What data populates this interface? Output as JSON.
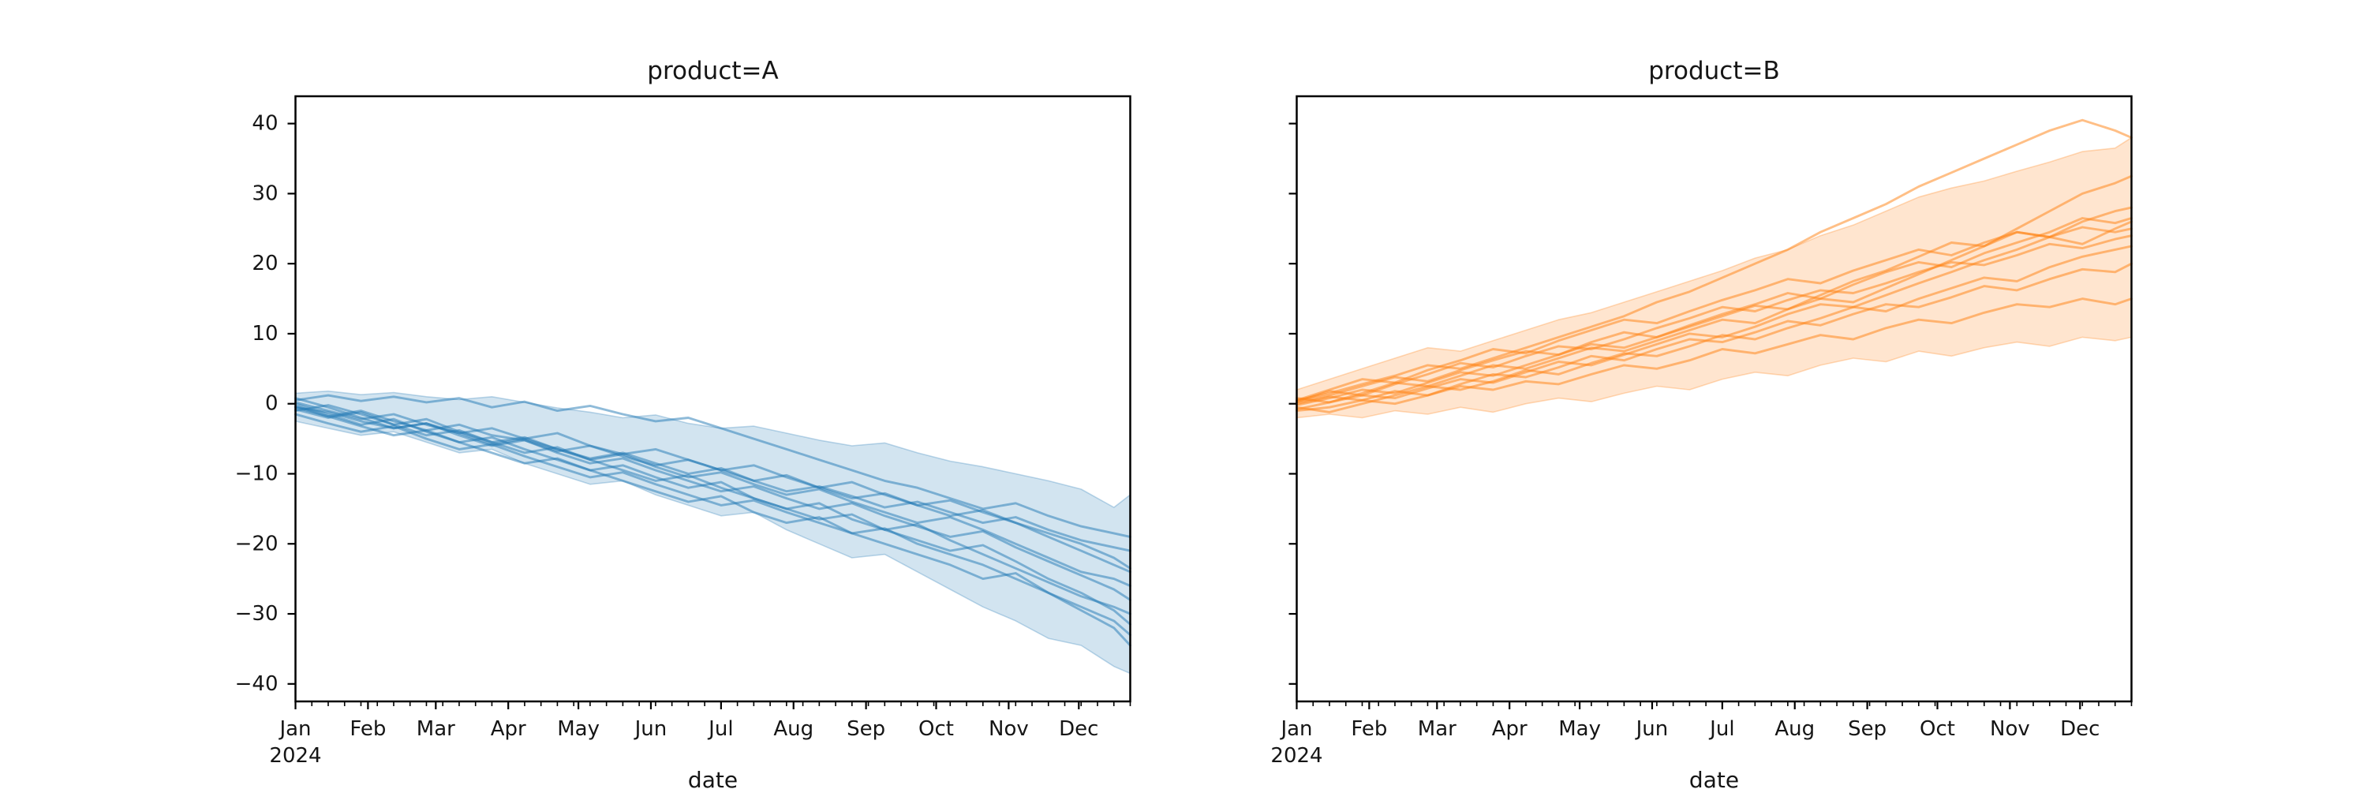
{
  "figure": {
    "background": "#ffffff"
  },
  "panels": [
    {
      "id": "A",
      "title": "product=A",
      "xlabel": "date",
      "color": "#1f77b4",
      "line_alpha": 0.5,
      "band_alpha": 0.2,
      "show_y_tick_labels": true
    },
    {
      "id": "B",
      "title": "product=B",
      "xlabel": "date",
      "color": "#ff7f0e",
      "line_alpha": 0.5,
      "band_alpha": 0.2,
      "show_y_tick_labels": false
    }
  ],
  "axes": {
    "y_ticks": [
      {
        "value": 40,
        "label": "40"
      },
      {
        "value": 30,
        "label": "30"
      },
      {
        "value": 20,
        "label": "20"
      },
      {
        "value": 10,
        "label": "10"
      },
      {
        "value": 0,
        "label": "0"
      },
      {
        "value": -10,
        "label": "−10"
      },
      {
        "value": -20,
        "label": "−20"
      },
      {
        "value": -30,
        "label": "−30"
      },
      {
        "value": -40,
        "label": "−40"
      }
    ],
    "x_ticks": [
      {
        "day": 0,
        "label": "Jan",
        "sub": "2024"
      },
      {
        "day": 31,
        "label": "Feb"
      },
      {
        "day": 60,
        "label": "Mar"
      },
      {
        "day": 91,
        "label": "Apr"
      },
      {
        "day": 121,
        "label": "May"
      },
      {
        "day": 152,
        "label": "Jun"
      },
      {
        "day": 182,
        "label": "Jul"
      },
      {
        "day": 213,
        "label": "Aug"
      },
      {
        "day": 244,
        "label": "Sep"
      },
      {
        "day": 274,
        "label": "Oct"
      },
      {
        "day": 305,
        "label": "Nov"
      },
      {
        "day": 335,
        "label": "Dec"
      }
    ],
    "minor_tick_interval_days": 7,
    "xlim_days": [
      0,
      357
    ],
    "ylim": [
      -42.5,
      43.9
    ],
    "grid": false,
    "legend": false
  },
  "chart_data": [
    {
      "type": "line",
      "title": "product=A",
      "xlabel": "date",
      "ylabel": "",
      "x_unit": "days since Jan 1, 2024",
      "x": [
        0,
        14,
        28,
        42,
        56,
        70,
        84,
        98,
        112,
        126,
        140,
        154,
        168,
        182,
        196,
        210,
        224,
        238,
        252,
        266,
        280,
        294,
        308,
        322,
        336,
        350,
        357
      ],
      "ylim": [
        -42.5,
        43.9
      ],
      "series": [
        [
          0.5,
          1.2,
          0.4,
          1.0,
          0.2,
          0.8,
          -0.5,
          0.3,
          -1.0,
          -0.3,
          -1.5,
          -2.5,
          -2.0,
          -3.5,
          -5.0,
          -6.5,
          -8.0,
          -9.5,
          -11.0,
          -12.0,
          -13.5,
          -15.0,
          -14.2,
          -16.0,
          -17.5,
          -18.5,
          -19.0
        ],
        [
          -0.5,
          -1.2,
          -2.5,
          -3.5,
          -2.8,
          -4.2,
          -5.8,
          -5.0,
          -6.5,
          -7.8,
          -7.0,
          -8.5,
          -10.0,
          -9.2,
          -11.0,
          -12.5,
          -11.8,
          -13.2,
          -14.8,
          -14.0,
          -15.5,
          -17.0,
          -16.2,
          -18.0,
          -19.5,
          -20.5,
          -21.0
        ],
        [
          -0.5,
          -1.8,
          -1.0,
          -2.5,
          -3.8,
          -3.0,
          -4.5,
          -5.2,
          -6.8,
          -6.0,
          -7.5,
          -8.8,
          -8.0,
          -9.5,
          -11.0,
          -10.2,
          -12.0,
          -13.5,
          -12.8,
          -14.5,
          -16.0,
          -15.2,
          -17.0,
          -18.5,
          -20.0,
          -22.0,
          -23.5
        ],
        [
          0.2,
          -1.0,
          -2.2,
          -1.5,
          -3.0,
          -4.2,
          -3.5,
          -5.0,
          -4.2,
          -6.0,
          -7.2,
          -6.5,
          -8.0,
          -9.5,
          -8.8,
          -10.5,
          -12.0,
          -11.2,
          -13.0,
          -14.5,
          -13.8,
          -15.5,
          -17.0,
          -19.0,
          -21.0,
          -23.0,
          -24.0
        ],
        [
          -1.0,
          -0.2,
          -1.5,
          -3.0,
          -2.2,
          -4.0,
          -5.5,
          -4.8,
          -6.5,
          -8.0,
          -7.2,
          -9.0,
          -10.5,
          -9.8,
          -11.5,
          -13.0,
          -12.2,
          -14.0,
          -15.5,
          -17.0,
          -16.2,
          -18.0,
          -20.0,
          -22.0,
          -24.0,
          -25.0,
          -26.0
        ],
        [
          0.8,
          -0.5,
          -2.0,
          -3.5,
          -2.8,
          -4.5,
          -6.0,
          -5.2,
          -7.0,
          -8.5,
          -7.8,
          -9.5,
          -11.0,
          -12.5,
          -11.8,
          -13.5,
          -15.0,
          -14.2,
          -16.0,
          -17.5,
          -19.0,
          -18.2,
          -20.5,
          -22.5,
          -24.5,
          -26.5,
          -28.0
        ],
        [
          -0.8,
          -2.0,
          -1.2,
          -3.0,
          -4.5,
          -3.8,
          -5.5,
          -7.0,
          -6.2,
          -8.0,
          -9.5,
          -11.0,
          -10.2,
          -12.0,
          -13.5,
          -15.0,
          -14.2,
          -16.5,
          -18.0,
          -17.2,
          -19.5,
          -21.5,
          -23.5,
          -25.5,
          -27.5,
          -29.0,
          -30.0
        ],
        [
          0.0,
          -1.5,
          -3.0,
          -2.2,
          -4.0,
          -5.5,
          -4.8,
          -6.5,
          -8.0,
          -9.5,
          -8.8,
          -10.5,
          -12.0,
          -11.2,
          -13.5,
          -15.0,
          -16.5,
          -15.8,
          -18.0,
          -19.5,
          -21.0,
          -20.2,
          -22.5,
          -25.0,
          -27.0,
          -29.5,
          -31.5
        ],
        [
          -1.5,
          -2.8,
          -4.0,
          -3.2,
          -5.0,
          -6.5,
          -5.8,
          -7.5,
          -9.0,
          -10.5,
          -9.8,
          -11.5,
          -13.0,
          -14.5,
          -13.8,
          -15.5,
          -17.0,
          -18.5,
          -17.8,
          -20.0,
          -21.5,
          -23.0,
          -25.0,
          -27.0,
          -29.0,
          -31.0,
          -33.0
        ],
        [
          -0.3,
          -1.8,
          -3.2,
          -4.5,
          -3.8,
          -5.5,
          -7.0,
          -8.5,
          -7.8,
          -9.5,
          -11.0,
          -12.5,
          -14.0,
          -13.2,
          -15.5,
          -17.0,
          -16.2,
          -18.5,
          -20.0,
          -21.5,
          -23.0,
          -25.0,
          -24.2,
          -27.0,
          -29.5,
          -32.0,
          -34.5
        ]
      ],
      "band": {
        "upper": [
          1.5,
          1.8,
          1.3,
          1.6,
          1.0,
          0.6,
          1.0,
          0.2,
          -0.6,
          -1.2,
          -2.0,
          -1.6,
          -2.8,
          -3.5,
          -3.2,
          -4.2,
          -5.2,
          -6.0,
          -5.6,
          -7.0,
          -8.2,
          -9.0,
          -10.0,
          -11.0,
          -12.2,
          -14.8,
          -13.0
        ],
        "lower": [
          -2.5,
          -3.5,
          -4.5,
          -4.0,
          -5.5,
          -7.0,
          -6.5,
          -8.5,
          -10.0,
          -11.5,
          -11.0,
          -13.0,
          -14.5,
          -16.0,
          -15.5,
          -18.0,
          -20.0,
          -22.0,
          -21.5,
          -24.0,
          -26.5,
          -29.0,
          -31.0,
          -33.5,
          -34.5,
          -37.5,
          -38.5
        ]
      }
    },
    {
      "type": "line",
      "title": "product=B",
      "xlabel": "date",
      "ylabel": "",
      "x_unit": "days since Jan 1, 2024",
      "x": [
        0,
        14,
        28,
        42,
        56,
        70,
        84,
        98,
        112,
        126,
        140,
        154,
        168,
        182,
        196,
        210,
        224,
        238,
        252,
        266,
        280,
        294,
        308,
        322,
        336,
        350,
        357
      ],
      "ylim": [
        -42.5,
        43.9
      ],
      "series": [
        [
          0.5,
          1.5,
          2.8,
          4.0,
          5.5,
          5.0,
          6.5,
          8.0,
          9.5,
          11.0,
          12.5,
          14.5,
          16.0,
          18.0,
          20.0,
          22.0,
          24.5,
          26.5,
          28.5,
          31.0,
          33.0,
          35.0,
          37.0,
          39.0,
          40.5,
          39.0,
          38.0
        ],
        [
          -0.2,
          0.8,
          2.0,
          1.5,
          3.0,
          4.5,
          4.0,
          5.5,
          7.0,
          8.5,
          8.0,
          9.5,
          11.0,
          12.5,
          14.0,
          13.5,
          15.5,
          17.5,
          19.0,
          21.0,
          23.0,
          22.5,
          25.0,
          27.5,
          30.0,
          31.5,
          32.5
        ],
        [
          0.8,
          0.2,
          1.5,
          3.0,
          2.5,
          4.0,
          5.5,
          5.0,
          6.5,
          8.0,
          7.5,
          9.0,
          10.5,
          12.0,
          11.5,
          13.5,
          15.0,
          14.5,
          16.5,
          18.5,
          20.5,
          22.5,
          24.5,
          23.8,
          26.0,
          27.5,
          28.0
        ],
        [
          0.2,
          1.2,
          2.5,
          3.8,
          3.2,
          4.8,
          6.2,
          7.5,
          7.0,
          8.8,
          10.2,
          9.5,
          11.2,
          12.8,
          14.2,
          15.8,
          15.0,
          17.0,
          18.8,
          20.2,
          19.5,
          21.5,
          23.0,
          24.5,
          26.5,
          25.8,
          26.5
        ],
        [
          -0.8,
          0.2,
          1.2,
          0.8,
          2.2,
          3.5,
          3.0,
          4.5,
          6.0,
          5.5,
          7.0,
          8.5,
          10.0,
          9.5,
          11.0,
          12.8,
          14.2,
          13.8,
          15.5,
          17.2,
          18.8,
          20.5,
          22.0,
          23.8,
          22.8,
          25.0,
          26.0
        ],
        [
          0.5,
          2.0,
          3.5,
          3.0,
          4.8,
          6.2,
          7.8,
          7.2,
          9.0,
          10.5,
          12.0,
          11.5,
          13.2,
          14.8,
          16.2,
          17.8,
          17.2,
          19.0,
          20.5,
          22.0,
          21.2,
          23.0,
          24.5,
          23.8,
          25.2,
          24.5,
          25.0
        ],
        [
          -0.5,
          -1.2,
          0.0,
          1.2,
          2.5,
          2.0,
          3.2,
          4.8,
          4.2,
          5.8,
          7.2,
          6.8,
          8.2,
          9.8,
          9.2,
          10.8,
          12.2,
          13.8,
          13.2,
          15.0,
          16.5,
          18.0,
          17.5,
          19.5,
          21.0,
          22.0,
          22.5
        ],
        [
          0.0,
          1.0,
          0.5,
          1.8,
          1.2,
          2.8,
          4.2,
          3.8,
          5.2,
          6.8,
          6.2,
          7.8,
          9.2,
          8.8,
          10.2,
          11.8,
          11.2,
          12.8,
          14.2,
          13.8,
          15.2,
          16.8,
          16.2,
          17.8,
          19.2,
          18.8,
          20.0
        ],
        [
          -1.0,
          -0.5,
          0.5,
          0.0,
          1.2,
          2.5,
          2.0,
          3.2,
          2.8,
          4.2,
          5.5,
          5.0,
          6.2,
          7.8,
          7.2,
          8.5,
          9.8,
          9.2,
          10.8,
          12.0,
          11.5,
          13.0,
          14.2,
          13.8,
          15.0,
          14.2,
          15.0
        ],
        [
          0.3,
          1.8,
          1.2,
          2.8,
          4.2,
          5.8,
          5.2,
          6.8,
          8.2,
          7.8,
          9.2,
          10.8,
          12.2,
          13.8,
          13.2,
          14.8,
          16.2,
          15.8,
          17.2,
          18.8,
          20.2,
          19.8,
          21.2,
          22.8,
          22.2,
          23.5,
          24.0
        ]
      ],
      "band": {
        "upper": [
          2.0,
          3.5,
          5.0,
          6.5,
          8.0,
          7.5,
          9.0,
          10.5,
          12.0,
          13.0,
          14.5,
          16.0,
          17.5,
          19.0,
          20.8,
          22.0,
          24.0,
          25.5,
          27.5,
          29.5,
          30.8,
          31.8,
          33.2,
          34.5,
          36.0,
          36.5,
          38.0
        ],
        "lower": [
          -2.0,
          -1.5,
          -2.0,
          -1.0,
          -1.5,
          -0.5,
          -1.2,
          0.0,
          0.8,
          0.3,
          1.5,
          2.5,
          2.0,
          3.5,
          4.5,
          4.0,
          5.5,
          6.5,
          6.0,
          7.5,
          6.8,
          8.0,
          8.8,
          8.2,
          9.5,
          9.0,
          9.5
        ]
      }
    }
  ]
}
